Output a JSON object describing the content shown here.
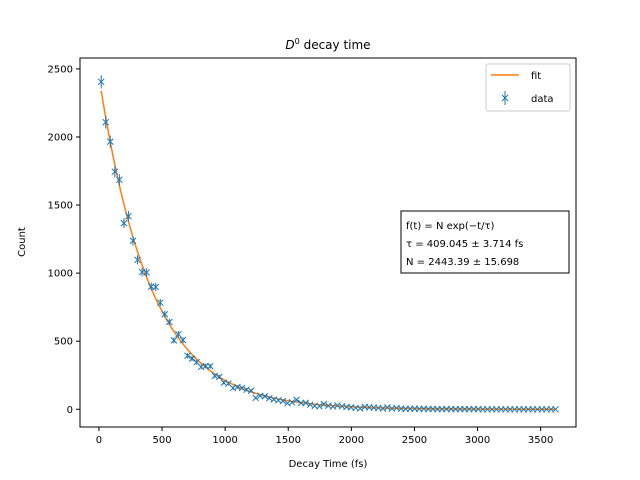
{
  "chart_data": {
    "type": "scatter",
    "title_math": "D",
    "title_sup": "0",
    "title_rest": " decay time",
    "xlabel": "Decay Time (fs)",
    "ylabel": "Count",
    "xlim": [
      -150,
      3780
    ],
    "ylim": [
      -130,
      2580
    ],
    "xticks": [
      0,
      500,
      1000,
      1500,
      2000,
      2500,
      3000,
      3500
    ],
    "yticks": [
      0,
      500,
      1000,
      1500,
      2000,
      2500
    ],
    "xtick_labels": [
      "0",
      "500",
      "1000",
      "1500",
      "2000",
      "2500",
      "3000",
      "3500"
    ],
    "ytick_labels": [
      "0",
      "500",
      "1000",
      "1500",
      "2000",
      "2500"
    ],
    "grid": false,
    "legend_position": "top-right",
    "fit": {
      "name": "fit",
      "color": "#ff7f0e",
      "N": 2443.39,
      "tau": 409.045,
      "x_range": [
        18,
        3620
      ]
    },
    "series": [
      {
        "name": "data",
        "color": "#1f77b4",
        "marker": "x",
        "points": [
          [
            18,
            2405
          ],
          [
            54,
            2108
          ],
          [
            90,
            1966
          ],
          [
            126,
            1745
          ],
          [
            162,
            1686
          ],
          [
            198,
            1367
          ],
          [
            234,
            1418
          ],
          [
            270,
            1238
          ],
          [
            306,
            1098
          ],
          [
            342,
            1008
          ],
          [
            378,
            1005
          ],
          [
            414,
            901
          ],
          [
            450,
            898
          ],
          [
            486,
            783
          ],
          [
            522,
            698
          ],
          [
            558,
            641
          ],
          [
            594,
            506
          ],
          [
            630,
            551
          ],
          [
            666,
            508
          ],
          [
            702,
            393
          ],
          [
            738,
            372
          ],
          [
            774,
            346
          ],
          [
            810,
            311
          ],
          [
            846,
            318
          ],
          [
            882,
            316
          ],
          [
            918,
            246
          ],
          [
            954,
            238
          ],
          [
            990,
            196
          ],
          [
            1026,
            188
          ],
          [
            1062,
            156
          ],
          [
            1098,
            164
          ],
          [
            1134,
            157
          ],
          [
            1170,
            144
          ],
          [
            1206,
            136
          ],
          [
            1242,
            84
          ],
          [
            1278,
            99
          ],
          [
            1314,
            96
          ],
          [
            1350,
            82
          ],
          [
            1386,
            72
          ],
          [
            1422,
            66
          ],
          [
            1458,
            61
          ],
          [
            1494,
            44
          ],
          [
            1530,
            51
          ],
          [
            1566,
            70
          ],
          [
            1602,
            46
          ],
          [
            1638,
            47
          ],
          [
            1674,
            34
          ],
          [
            1710,
            24
          ],
          [
            1746,
            22
          ],
          [
            1782,
            38
          ],
          [
            1818,
            26
          ],
          [
            1854,
            20
          ],
          [
            1890,
            28
          ],
          [
            1926,
            22
          ],
          [
            1962,
            18
          ],
          [
            1998,
            14
          ],
          [
            2034,
            10
          ],
          [
            2070,
            6
          ],
          [
            2106,
            18
          ],
          [
            2142,
            14
          ],
          [
            2178,
            12
          ],
          [
            2214,
            10
          ],
          [
            2250,
            6
          ],
          [
            2286,
            14
          ],
          [
            2322,
            5
          ],
          [
            2358,
            10
          ],
          [
            2394,
            5
          ],
          [
            2430,
            2
          ],
          [
            2466,
            4
          ],
          [
            2502,
            4
          ],
          [
            2538,
            3
          ],
          [
            2574,
            4
          ],
          [
            2610,
            2
          ],
          [
            2646,
            2
          ],
          [
            2682,
            1
          ],
          [
            2718,
            1
          ],
          [
            2754,
            2
          ],
          [
            2790,
            1
          ],
          [
            2826,
            1
          ],
          [
            2862,
            1
          ],
          [
            2898,
            1
          ],
          [
            2934,
            1
          ],
          [
            2970,
            1
          ],
          [
            3006,
            1
          ],
          [
            3042,
            0
          ],
          [
            3078,
            0
          ],
          [
            3114,
            0
          ],
          [
            3150,
            0
          ],
          [
            3186,
            0
          ],
          [
            3222,
            0
          ],
          [
            3258,
            0
          ],
          [
            3294,
            0
          ],
          [
            3330,
            0
          ],
          [
            3366,
            0
          ],
          [
            3402,
            0
          ],
          [
            3438,
            0
          ],
          [
            3474,
            0
          ],
          [
            3510,
            0
          ],
          [
            3546,
            0
          ],
          [
            3582,
            0
          ],
          [
            3618,
            0
          ]
        ]
      }
    ],
    "annotation": {
      "line1": "f(t) = N exp(−t/τ)",
      "line2": "τ = 409.045 ± 3.714 fs",
      "line3": "N = 2443.39 ± 15.698"
    }
  }
}
